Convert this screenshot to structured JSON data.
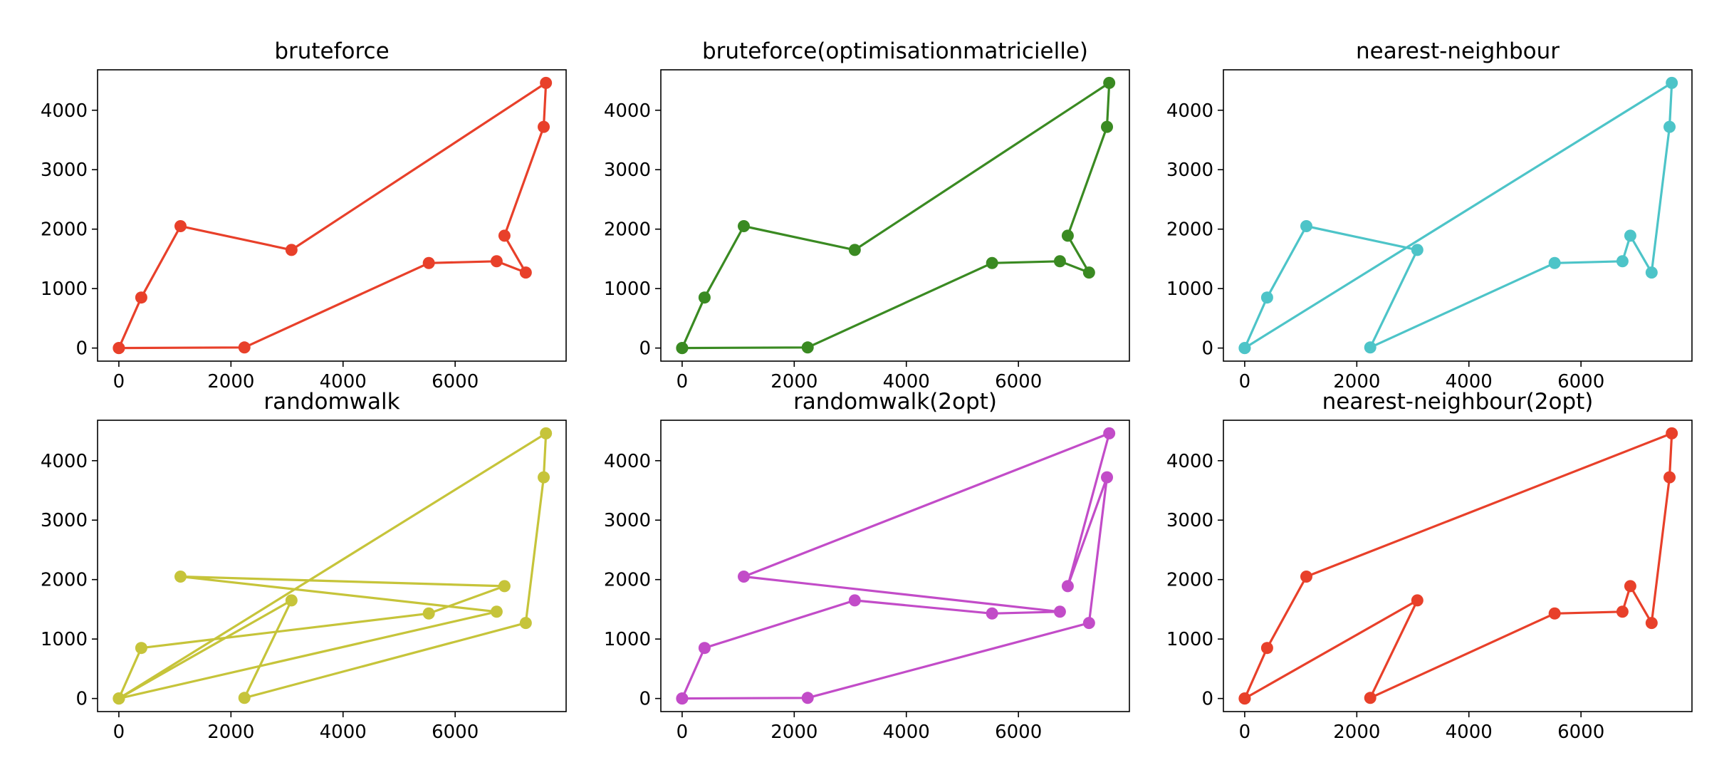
{
  "chart_data": [
    {
      "type": "line",
      "title": "bruteforce",
      "color": "#e8402a",
      "xlim": [
        -380,
        7980
      ],
      "ylim": [
        -220,
        4680
      ],
      "xticks": [
        0,
        2000,
        4000,
        6000
      ],
      "yticks": [
        0,
        1000,
        2000,
        3000,
        4000
      ],
      "x": [
        0,
        2240,
        5530,
        6740,
        7260,
        6880,
        7580,
        7620,
        3080,
        1100,
        400,
        0
      ],
      "y": [
        0,
        10,
        1430,
        1460,
        1270,
        1890,
        3720,
        4460,
        1650,
        2050,
        850,
        0
      ]
    },
    {
      "type": "line",
      "title": "bruteforce(optimisationmatricielle)",
      "color": "#3a8a22",
      "xlim": [
        -380,
        7980
      ],
      "ylim": [
        -220,
        4680
      ],
      "xticks": [
        0,
        2000,
        4000,
        6000
      ],
      "yticks": [
        0,
        1000,
        2000,
        3000,
        4000
      ],
      "x": [
        0,
        2240,
        5530,
        6740,
        7260,
        6880,
        7580,
        7620,
        3080,
        1100,
        400,
        0
      ],
      "y": [
        0,
        10,
        1430,
        1460,
        1270,
        1890,
        3720,
        4460,
        1650,
        2050,
        850,
        0
      ]
    },
    {
      "type": "line",
      "title": "nearest-neighbour",
      "color": "#4dc4c8",
      "xlim": [
        -380,
        7980
      ],
      "ylim": [
        -220,
        4680
      ],
      "xticks": [
        0,
        2000,
        4000,
        6000
      ],
      "yticks": [
        0,
        1000,
        2000,
        3000,
        4000
      ],
      "x": [
        0,
        400,
        1100,
        3080,
        2240,
        5530,
        6740,
        6880,
        7260,
        7580,
        7620,
        0
      ],
      "y": [
        0,
        850,
        2050,
        1650,
        10,
        1430,
        1460,
        1890,
        1270,
        3720,
        4460,
        0
      ]
    },
    {
      "type": "line",
      "title": "randomwalk",
      "color": "#c6c43a",
      "xlim": [
        -380,
        7980
      ],
      "ylim": [
        -220,
        4680
      ],
      "xticks": [
        0,
        2000,
        4000,
        6000
      ],
      "yticks": [
        0,
        1000,
        2000,
        3000,
        4000
      ],
      "x": [
        0,
        7620,
        7580,
        7260,
        2240,
        3080,
        0,
        6740,
        1100,
        6880,
        5530,
        400,
        0
      ],
      "y": [
        0,
        4460,
        3720,
        1270,
        10,
        1650,
        0,
        1460,
        2050,
        1890,
        1430,
        850,
        0
      ]
    },
    {
      "type": "line",
      "title": "randomwalk(2opt)",
      "color": "#c24cc8",
      "xlim": [
        -380,
        7980
      ],
      "ylim": [
        -220,
        4680
      ],
      "xticks": [
        0,
        2000,
        4000,
        6000
      ],
      "yticks": [
        0,
        1000,
        2000,
        3000,
        4000
      ],
      "x": [
        0,
        2240,
        7260,
        7580,
        6880,
        7620,
        1100,
        6740,
        5530,
        3080,
        400,
        0
      ],
      "y": [
        0,
        10,
        1270,
        3720,
        1890,
        4460,
        2050,
        1460,
        1430,
        1650,
        850,
        0
      ]
    },
    {
      "type": "line",
      "title": "nearest-neighbour(2opt)",
      "color": "#e8402a",
      "xlim": [
        -380,
        7980
      ],
      "ylim": [
        -220,
        4680
      ],
      "xticks": [
        0,
        2000,
        4000,
        6000
      ],
      "yticks": [
        0,
        1000,
        2000,
        3000,
        4000
      ],
      "x": [
        0,
        400,
        1100,
        7620,
        7580,
        7260,
        6880,
        6740,
        5530,
        2240,
        3080,
        0
      ],
      "y": [
        0,
        850,
        2050,
        4460,
        3720,
        1270,
        1890,
        1460,
        1430,
        10,
        1650,
        0
      ]
    }
  ]
}
